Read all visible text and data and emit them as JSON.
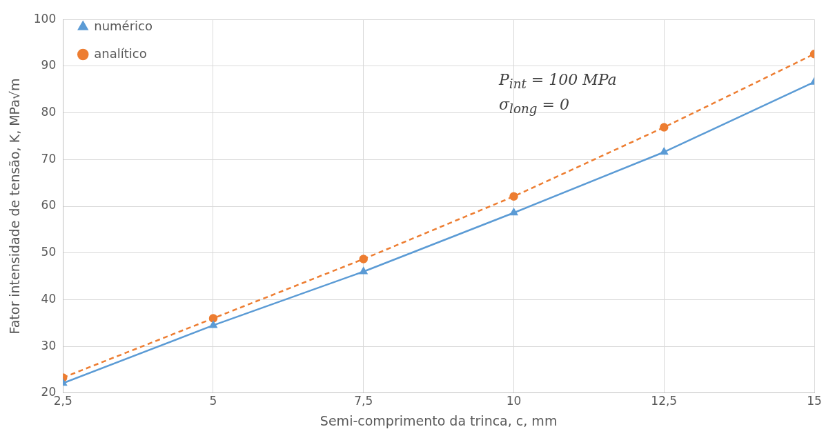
{
  "chart_data": {
    "type": "line",
    "xlabel": "Semi-comprimento da trinca, c, mm",
    "ylabel": "Fator intensidade de tensão, K, MPa√m",
    "x": [
      2.5,
      5,
      7.5,
      10,
      12.5,
      15
    ],
    "series": [
      {
        "name": "numérico",
        "color": "#5b9bd5",
        "marker": "triangle",
        "line_style": "solid",
        "values": [
          22.1,
          34.5,
          46.0,
          58.6,
          71.6,
          86.6
        ]
      },
      {
        "name": "analítico",
        "color": "#ed7d31",
        "marker": "circle",
        "line_style": "dashed",
        "values": [
          23.3,
          36.0,
          48.7,
          62.1,
          76.9,
          92.6
        ]
      }
    ],
    "xlim": [
      2.5,
      15
    ],
    "xticks": [
      {
        "value": 2.5,
        "label": "2,5"
      },
      5,
      {
        "value": 7.5,
        "label": "7,5"
      },
      10,
      {
        "value": 12.5,
        "label": "12,5"
      },
      15
    ],
    "ylim": [
      20,
      100
    ],
    "yticks": [
      20,
      30,
      40,
      50,
      60,
      70,
      80,
      90,
      100
    ],
    "grid": true,
    "legend": "top left",
    "annotations": [
      "P$_{int}$ = 100 MPa",
      "σ$_{long}$ = 0"
    ]
  }
}
